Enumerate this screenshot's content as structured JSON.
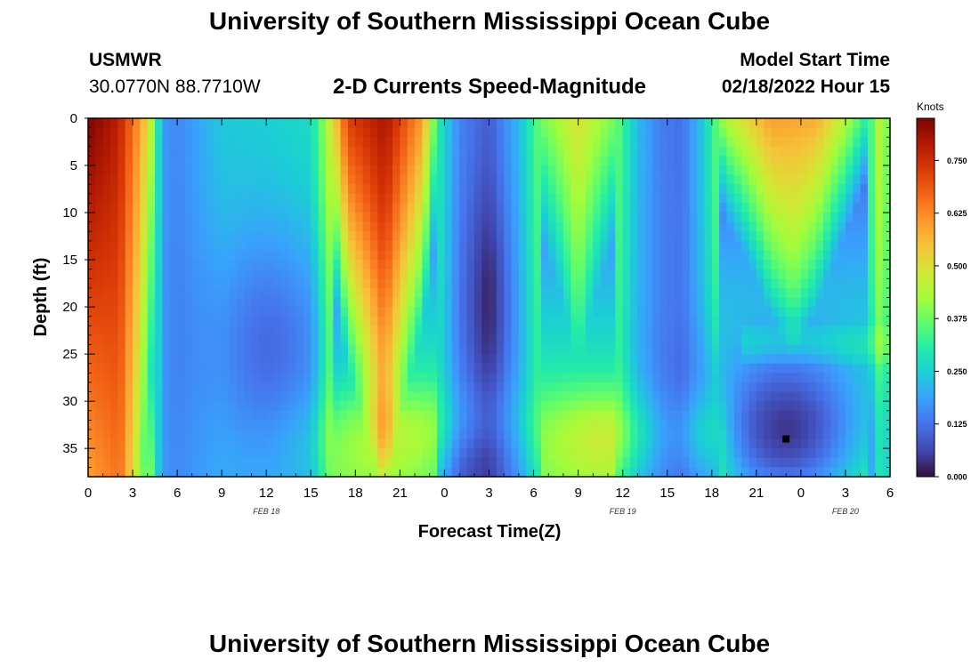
{
  "header": {
    "title": "University of Southern Mississippi Ocean Cube",
    "station_name": "USMWR",
    "station_coords": "30.0770N  88.7710W",
    "subtitle": "2-D Currents Speed-Magnitude",
    "model_label": "Model Start Time",
    "model_time": "02/18/2022 Hour 15",
    "bottom_title": "University of Southern Mississippi Ocean Cube"
  },
  "chart_data": {
    "type": "heatmap",
    "title": "2-D Currents Speed-Magnitude",
    "xlabel": "Forecast Time(Z)",
    "ylabel": "Depth (ft)",
    "x_tick_labels": [
      "0",
      "3",
      "6",
      "9",
      "12",
      "15",
      "18",
      "21",
      "0",
      "3",
      "6",
      "9",
      "12",
      "15",
      "18",
      "21",
      "0",
      "3",
      "6"
    ],
    "x_range_hours": [
      0,
      54
    ],
    "date_labels": [
      {
        "label": "FEB 18",
        "hour": 12
      },
      {
        "label": "FEB 19",
        "hour": 36
      },
      {
        "label": "FEB 20",
        "hour": 51
      }
    ],
    "y_tick_labels": [
      "0",
      "5",
      "10",
      "15",
      "20",
      "25",
      "30",
      "35"
    ],
    "y_range_ft": [
      0,
      38
    ],
    "y_inverted": true,
    "colorbar": {
      "unit": "Knots",
      "min": 0.0,
      "max": 0.85,
      "tick_labels": [
        "0.000",
        "0.125",
        "0.250",
        "0.375",
        "0.500",
        "0.625",
        "0.750"
      ],
      "tick_values": [
        0.0,
        0.125,
        0.25,
        0.375,
        0.5,
        0.625,
        0.75
      ]
    },
    "grid": false,
    "speed_field_description": {
      "surface_profile_hour_speed": [
        [
          0,
          0.85
        ],
        [
          2,
          0.78
        ],
        [
          3.5,
          0.6
        ],
        [
          4.3,
          0.45
        ],
        [
          5,
          0.18
        ],
        [
          6,
          0.15
        ],
        [
          9,
          0.24
        ],
        [
          12,
          0.25
        ],
        [
          15,
          0.27
        ],
        [
          16.2,
          0.45
        ],
        [
          17.5,
          0.72
        ],
        [
          20,
          0.8
        ],
        [
          22.5,
          0.6
        ],
        [
          23.6,
          0.3
        ],
        [
          25,
          0.15
        ],
        [
          27,
          0.1
        ],
        [
          29,
          0.22
        ],
        [
          30.5,
          0.38
        ],
        [
          33,
          0.5
        ],
        [
          35.5,
          0.38
        ],
        [
          37,
          0.22
        ],
        [
          38.5,
          0.14
        ],
        [
          40,
          0.12
        ],
        [
          41.5,
          0.25
        ],
        [
          43,
          0.45
        ],
        [
          46,
          0.6
        ],
        [
          49,
          0.58
        ],
        [
          51,
          0.45
        ],
        [
          52.5,
          0.3
        ],
        [
          53.5,
          0.5
        ],
        [
          54,
          0.3
        ]
      ],
      "low_speed_minimum": {
        "hour": 47,
        "depth_ft": 34,
        "speed_knots": 0.0
      }
    }
  }
}
